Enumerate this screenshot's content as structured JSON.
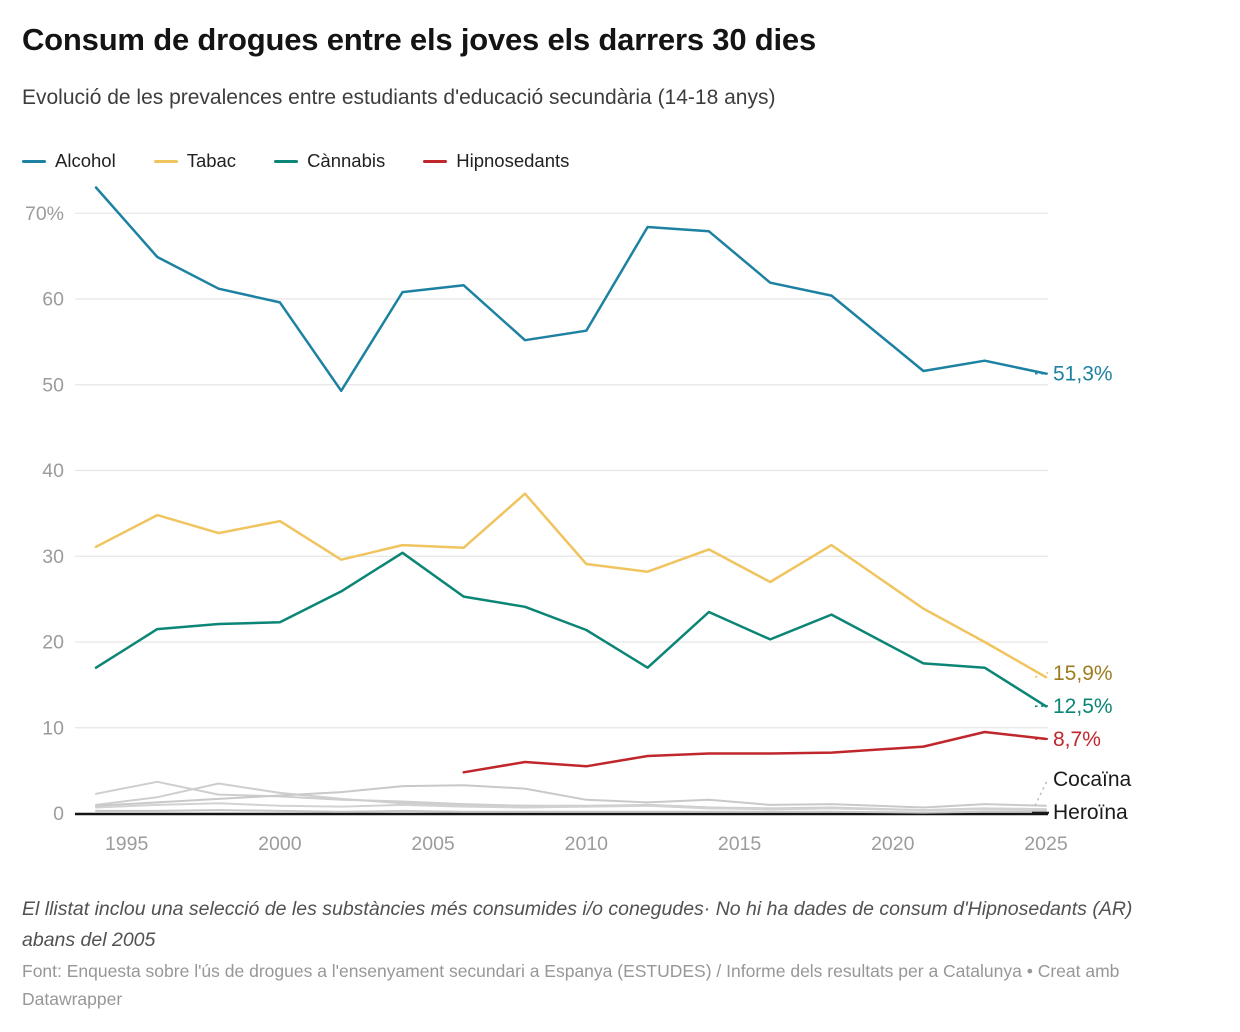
{
  "header": {
    "title": "Consum de drogues entre els joves els darrers 30 dies",
    "subtitle": "Evolució de les prevalences entre estudiants d'educació secundària (14-18 anys)"
  },
  "legend": {
    "items": [
      {
        "label": "Alcohol",
        "color": "#1d81a2"
      },
      {
        "label": "Tabac",
        "color": "#f0c45f"
      },
      {
        "label": "Cànnabis",
        "color": "#0b8575"
      },
      {
        "label": "Hipnosedants",
        "color": "#c0272c"
      }
    ]
  },
  "chart_data": {
    "type": "line",
    "x": [
      1994,
      1996,
      1998,
      2000,
      2002,
      2004,
      2006,
      2008,
      2010,
      2012,
      2014,
      2016,
      2018,
      2021,
      2023,
      2025
    ],
    "x_ticks": [
      "1995",
      "2000",
      "2005",
      "2010",
      "2015",
      "2020",
      "2025"
    ],
    "y_ticks": [
      0,
      10,
      20,
      30,
      40,
      50,
      60,
      70
    ],
    "y_tick_labels": [
      "0",
      "10",
      "20",
      "30",
      "40",
      "50",
      "60",
      "70%"
    ],
    "ylim": [
      0,
      73
    ],
    "xlim": [
      1994,
      2025
    ],
    "grid": true,
    "legend_position": "top",
    "series": [
      {
        "name": "gris-1",
        "color": "#cecece",
        "width": 2,
        "values": [
          2.3,
          3.7,
          2.2,
          2.0,
          1.6,
          1.4,
          1.1,
          0.9,
          0.9,
          1.0,
          0.7,
          0.6,
          0.7,
          0.4,
          0.6,
          0.5
        ]
      },
      {
        "name": "gris-2",
        "color": "#cecece",
        "width": 2,
        "values": [
          1.0,
          1.9,
          3.5,
          2.4,
          1.7,
          1.2,
          1.0,
          0.9,
          0.8,
          1.0,
          0.7,
          0.5,
          0.6,
          0.4,
          0.5,
          0.4
        ]
      },
      {
        "name": "gris-3",
        "color": "#d2d2d2",
        "width": 2,
        "values": [
          0.7,
          1.0,
          1.2,
          0.9,
          0.8,
          1.0,
          0.8,
          0.7,
          0.8,
          0.9,
          0.6,
          0.5,
          0.6,
          0.4,
          0.6,
          0.5
        ]
      },
      {
        "name": "Cocaïna",
        "color": "#c9c9c9",
        "width": 2,
        "end_label": "Cocaïna",
        "label_color": "#1a1a1a",
        "leader": "dashed-gray",
        "values": [
          0.9,
          1.3,
          1.7,
          2.1,
          2.5,
          3.2,
          3.3,
          2.9,
          1.6,
          1.3,
          1.6,
          1.0,
          1.1,
          0.7,
          1.1,
          0.9
        ]
      },
      {
        "name": "Heroïna",
        "color": "#c6c6c6",
        "width": 2,
        "end_label": "Heroïna",
        "label_color": "#1a1a1a",
        "leader": "solid-black",
        "values": [
          0.3,
          0.3,
          0.4,
          0.3,
          0.2,
          0.3,
          0.2,
          0.2,
          0.2,
          0.2,
          0.2,
          0.2,
          0.2,
          0.1,
          0.2,
          0.2
        ]
      },
      {
        "name": "Tabac",
        "color": "#f0c45f",
        "width": 2.5,
        "end_label": "15,9%",
        "label_color": "#9c7c1f",
        "leader": "dashed",
        "values": [
          31.1,
          34.8,
          32.7,
          34.1,
          29.6,
          31.3,
          31.0,
          37.3,
          29.1,
          28.2,
          30.8,
          27.0,
          31.3,
          23.9,
          20.0,
          15.9
        ]
      },
      {
        "name": "Cànnabis",
        "color": "#0b8575",
        "width": 2.5,
        "end_label": "12,5%",
        "label_color": "#0b8575",
        "leader": "dashed",
        "values": [
          17.0,
          21.5,
          22.1,
          22.3,
          25.9,
          30.4,
          25.3,
          24.1,
          21.4,
          17.0,
          23.5,
          20.3,
          23.2,
          17.5,
          17.0,
          12.5
        ]
      },
      {
        "name": "Hipnosedants",
        "color": "#c0272c",
        "width": 2.5,
        "end_label": "8,7%",
        "label_color": "#c0272c",
        "leader": "dashed",
        "values": [
          null,
          null,
          null,
          null,
          null,
          null,
          4.8,
          6.0,
          5.5,
          6.7,
          7.0,
          7.0,
          7.1,
          7.8,
          9.5,
          8.7
        ]
      },
      {
        "name": "Alcohol",
        "color": "#1d81a2",
        "width": 2.5,
        "end_label": "51,3%",
        "label_color": "#1d81a2",
        "leader": "dashed",
        "values": [
          73.0,
          64.9,
          61.2,
          59.6,
          49.3,
          60.8,
          61.6,
          55.2,
          56.3,
          68.4,
          67.9,
          61.9,
          60.4,
          51.6,
          52.8,
          51.3
        ]
      }
    ]
  },
  "footer": {
    "note": "El llistat inclou una selecció de les substàncies més consumides i/o conegudes· No hi ha dades de consum d'Hipnosedants (AR) abans del 2005",
    "source": "Font: Enquesta sobre l'ús de drogues a l'ensenyament secundari a Espanya (ESTUDES) / Informe dels resultats per a Catalunya • Creat amb Datawrapper"
  }
}
